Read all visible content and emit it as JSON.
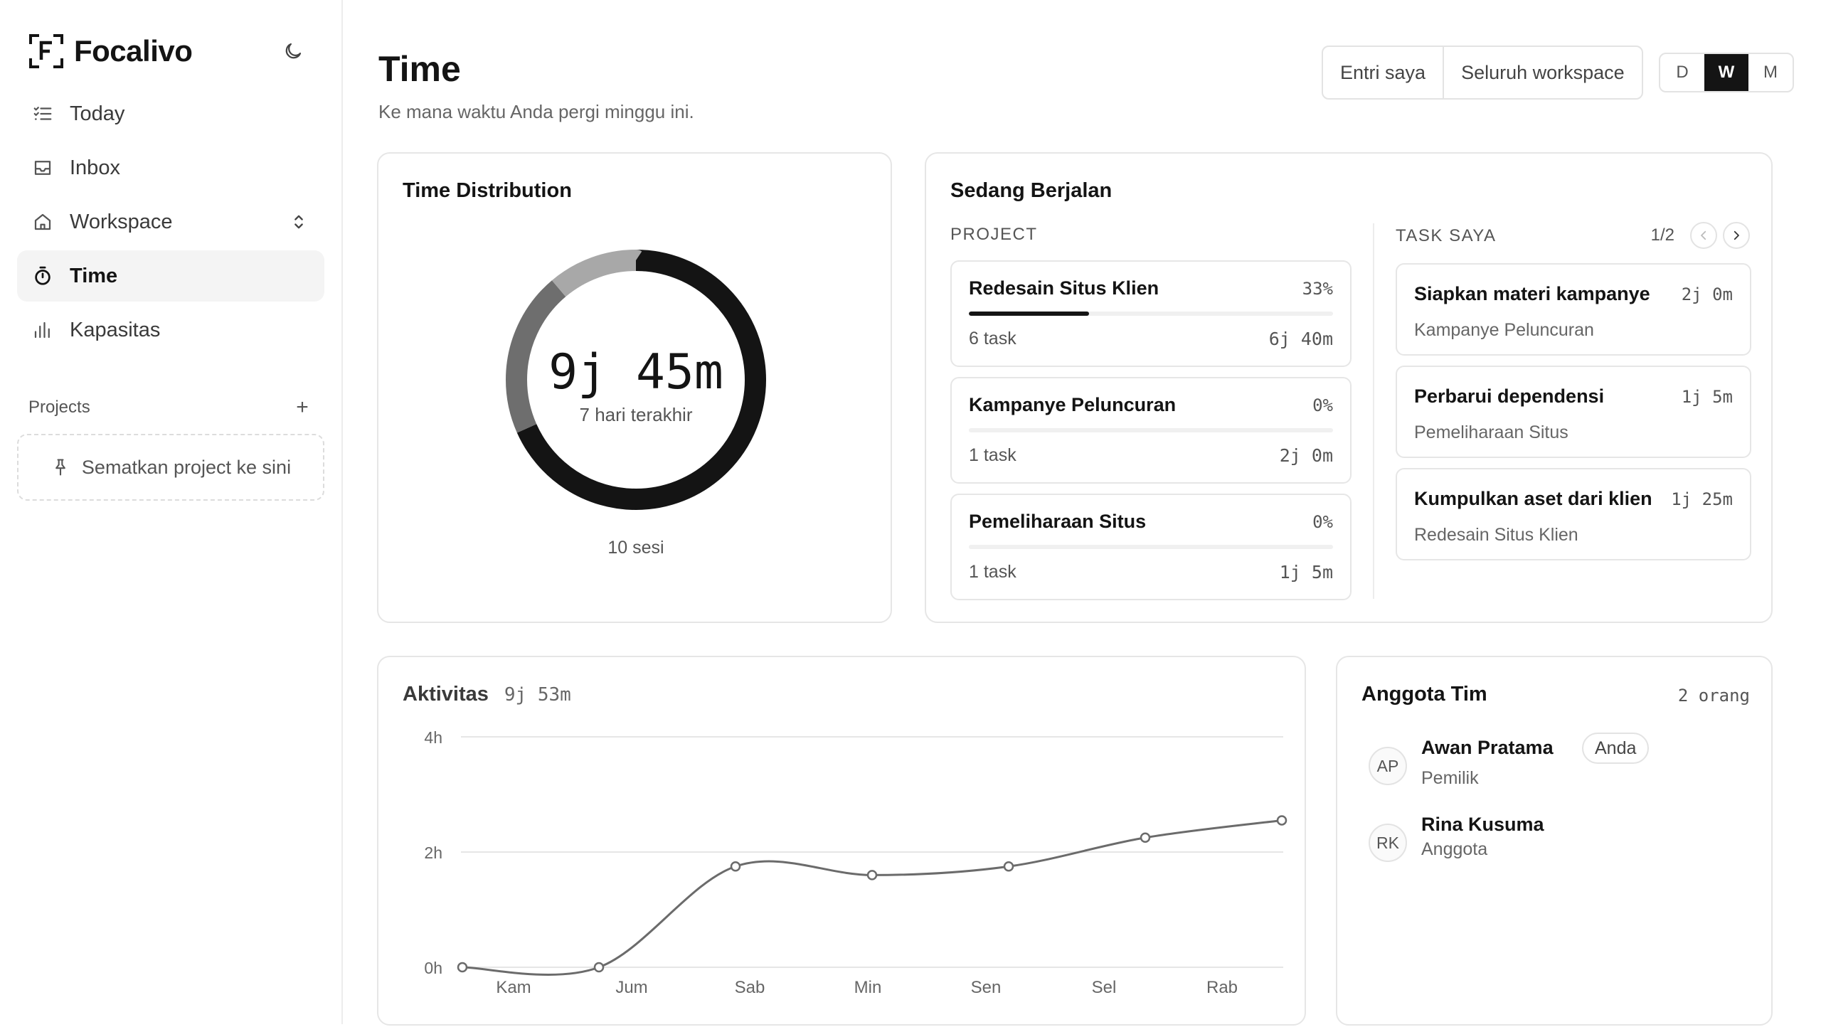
{
  "app": {
    "name": "Focalivo"
  },
  "sidebar": {
    "nav": [
      {
        "label": "Today",
        "icon": "checklist-icon"
      },
      {
        "label": "Inbox",
        "icon": "inbox-icon"
      },
      {
        "label": "Workspace",
        "icon": "home-icon"
      },
      {
        "label": "Time",
        "icon": "stopwatch-icon",
        "active": true
      },
      {
        "label": "Kapasitas",
        "icon": "bar-chart-icon"
      }
    ],
    "projects_label": "Projects",
    "add_label": "+",
    "pin_drop_label": "Sematkan project ke sini"
  },
  "header": {
    "title": "Time",
    "subtitle": "Ke mana waktu Anda pergi minggu ini.",
    "scope_options": [
      "Entri saya",
      "Seluruh workspace"
    ],
    "range_options": [
      "D",
      "W",
      "M"
    ],
    "range_selected": "W"
  },
  "distribution": {
    "title": "Time Distribution",
    "total": "9j 45m",
    "period_label": "7 hari terakhir",
    "sessions": "10 sesi",
    "segments": [
      {
        "color": "#141414",
        "fraction": 0.683
      },
      {
        "color": "#6e6e6e",
        "fraction": 0.205
      },
      {
        "color": "#a8a8a8",
        "fraction": 0.112
      }
    ]
  },
  "running": {
    "title": "Sedang Berjalan",
    "project_label": "PROJECT",
    "task_label": "TASK SAYA",
    "page": "1/2",
    "projects": [
      {
        "name": "Redesain Situs Klien",
        "pct": "33%",
        "progress": 0.33,
        "tasks": "6 task",
        "time": "6j 40m"
      },
      {
        "name": "Kampanye Peluncuran",
        "pct": "0%",
        "progress": 0,
        "tasks": "1 task",
        "time": "2j 0m"
      },
      {
        "name": "Pemeliharaan Situs",
        "pct": "0%",
        "progress": 0,
        "tasks": "1 task",
        "time": "1j 5m"
      }
    ],
    "tasks": [
      {
        "name": "Siapkan materi kampanye",
        "time": "2j 0m",
        "project": "Kampanye Peluncuran"
      },
      {
        "name": "Perbarui dependensi",
        "time": "1j 5m",
        "project": "Pemeliharaan Situs"
      },
      {
        "name": "Kumpulkan aset dari klien",
        "time": "1j 25m",
        "project": "Redesain Situs Klien"
      }
    ]
  },
  "activity": {
    "title": "Aktivitas",
    "total": "9j 53m"
  },
  "chart_data": {
    "type": "line",
    "title": "Aktivitas",
    "categories": [
      "Kam",
      "Jum",
      "Sab",
      "Min",
      "Sen",
      "Sel",
      "Rab"
    ],
    "y_ticks": [
      "0h",
      "2h",
      "4h"
    ],
    "ylim": [
      0,
      4
    ],
    "line_color": "#6b6b6b",
    "points": [
      {
        "x": "Kam",
        "y": 0.0
      },
      {
        "x": "Jum",
        "y": 0.0
      },
      {
        "x": "Sab",
        "y": 1.75
      },
      {
        "x": "Min",
        "y": 1.6
      },
      {
        "x": "Sen",
        "y": 1.75
      },
      {
        "x": "Sel",
        "y": 2.25
      },
      {
        "x": "Rab",
        "y": 2.55
      }
    ],
    "grid": true
  },
  "team": {
    "title": "Anggota Tim",
    "count": "2 orang",
    "members": [
      {
        "initials": "AP",
        "name": "Awan Pratama",
        "badge": "Anda",
        "role": "Pemilik"
      },
      {
        "initials": "RK",
        "name": "Rina Kusuma",
        "role": "Anggota"
      }
    ]
  }
}
